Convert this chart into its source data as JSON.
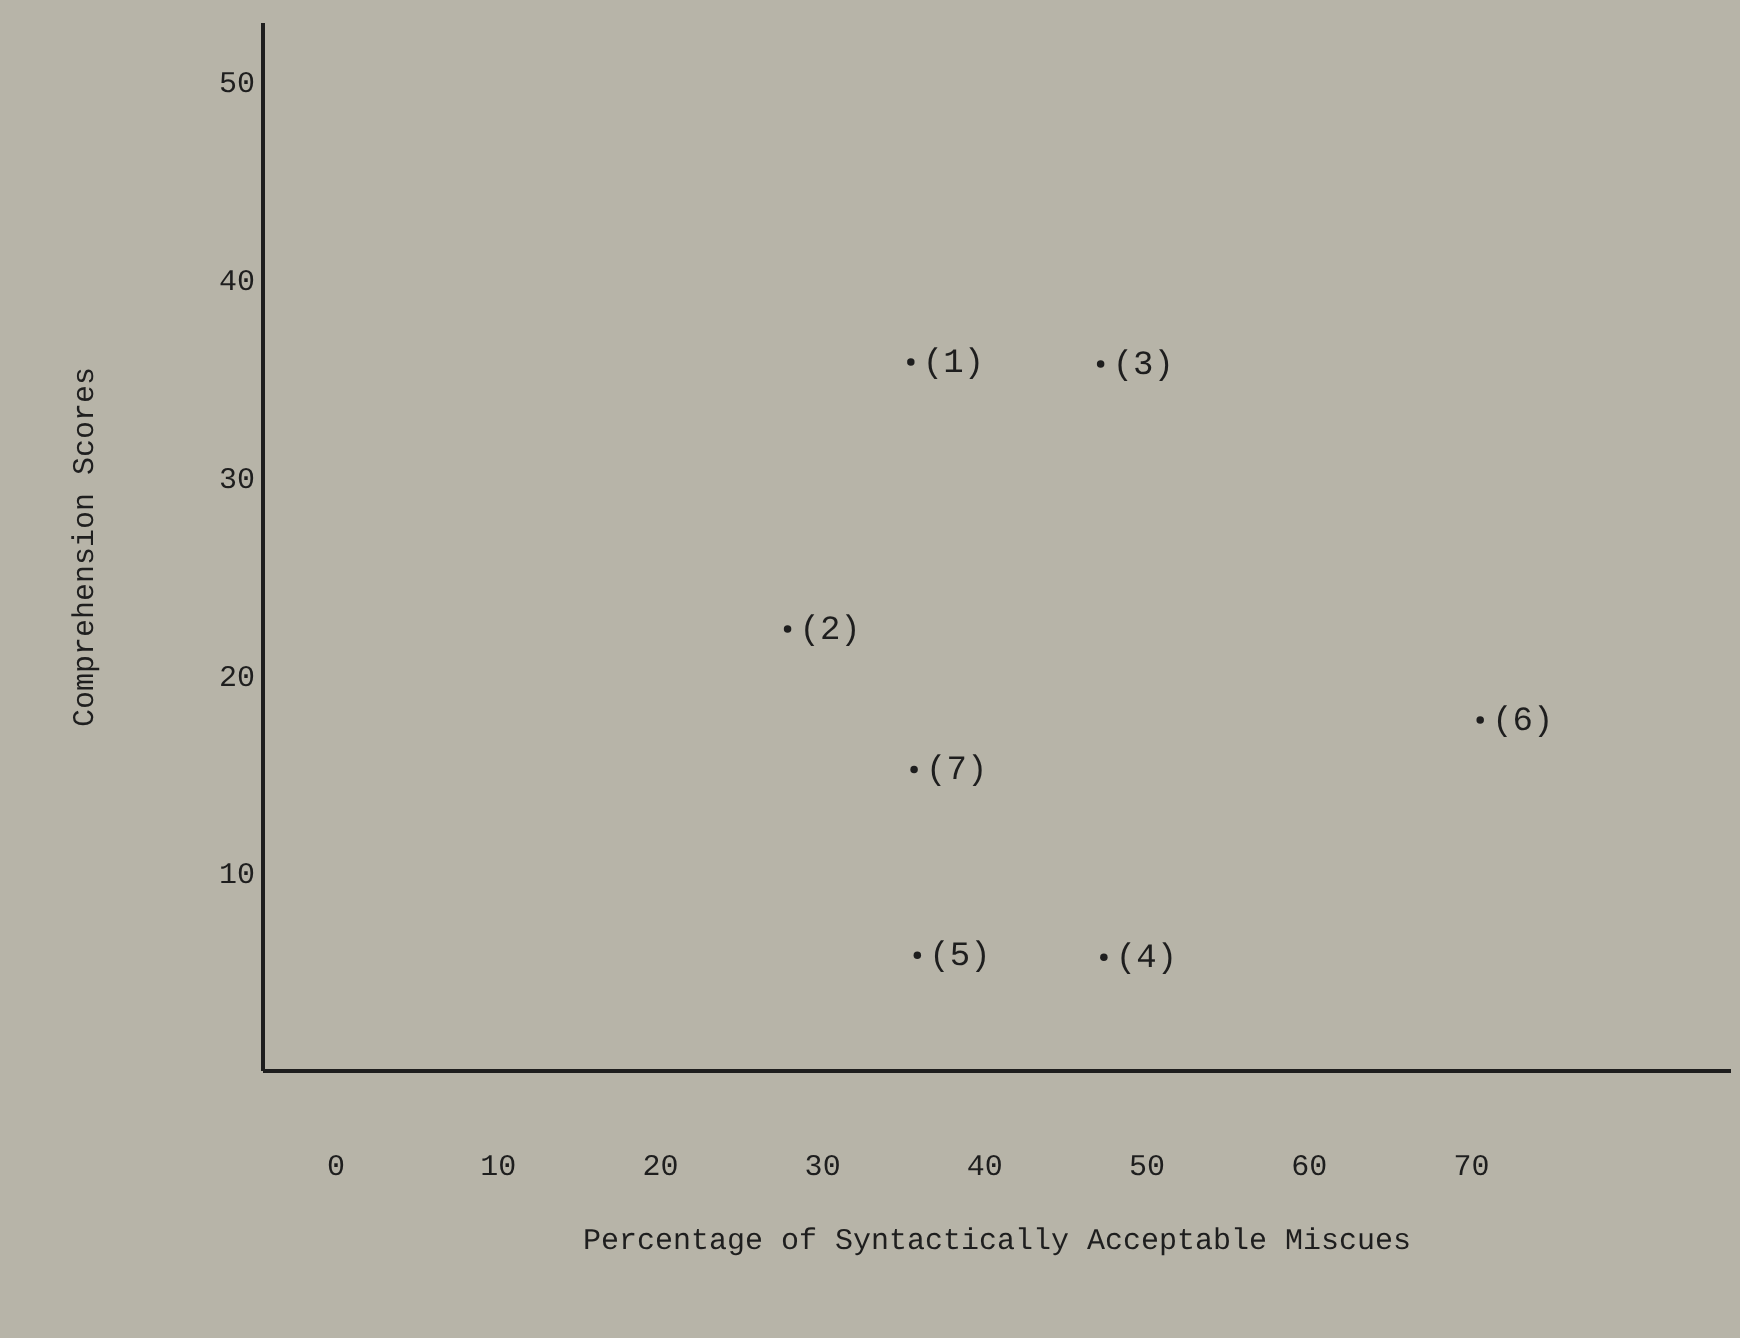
{
  "chart_data": {
    "type": "scatter",
    "xlabel": "Percentage of Syntactically Acceptable Miscues",
    "ylabel": "Comprehension Scores",
    "x": [
      35.5,
      27.9,
      47.2,
      47.4,
      35.9,
      70.6,
      35.7
    ],
    "values": [
      35.8,
      22.3,
      35.7,
      5.7,
      5.8,
      17.7,
      15.2
    ],
    "annotations": [
      {
        "text": "(1)",
        "x": 35.5,
        "y": 35.8
      },
      {
        "text": "(2)",
        "x": 27.9,
        "y": 22.3
      },
      {
        "text": "(3)",
        "x": 47.2,
        "y": 35.7
      },
      {
        "text": "(4)",
        "x": 47.4,
        "y": 5.7
      },
      {
        "text": "(5)",
        "x": 35.9,
        "y": 5.8
      },
      {
        "text": "(6)",
        "x": 70.6,
        "y": 17.7
      },
      {
        "text": "(7)",
        "x": 35.7,
        "y": 15.2
      }
    ],
    "color": "#1e1e1e",
    "xlim": [
      -4.5,
      86
    ],
    "xticks": [
      0,
      10,
      20,
      30,
      40,
      50,
      60,
      70
    ],
    "ylim": [
      0,
      53
    ],
    "yticks": [
      10,
      20,
      30,
      40,
      50
    ],
    "grid": false,
    "marker": "circle"
  }
}
